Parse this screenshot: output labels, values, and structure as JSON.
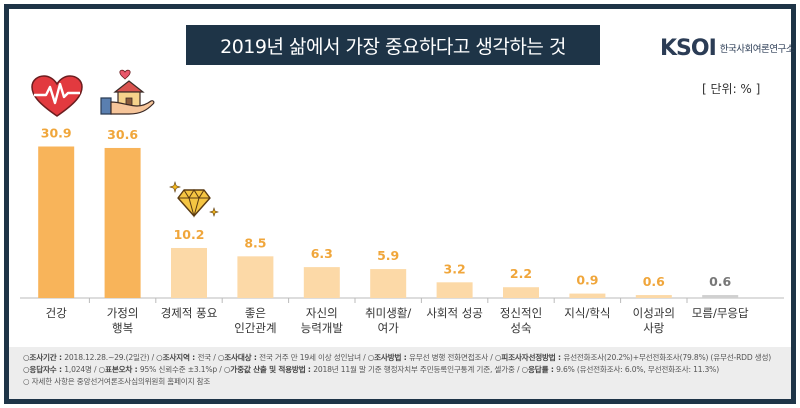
{
  "header": {
    "title": "2019년 삶에서 가장 중요하다고 생각하는 것",
    "logo_mark": "KSOI",
    "logo_text": "한국사회여론연구소",
    "unit": "[ 단위: % ]"
  },
  "chart_data": {
    "type": "bar",
    "title": "2019년 삶에서 가장 중요하다고 생각하는 것",
    "categories": [
      [
        "건강"
      ],
      [
        "가정의",
        "행복"
      ],
      [
        "경제적 풍요"
      ],
      [
        "좋은",
        "인간관계"
      ],
      [
        "자신의",
        "능력개발"
      ],
      [
        "취미생활/",
        "여가"
      ],
      [
        "사회적 성공"
      ],
      [
        "정신적인",
        "성숙"
      ],
      [
        "지식/학식"
      ],
      [
        "이성과의",
        "사랑"
      ],
      [
        "모름/무응답"
      ]
    ],
    "values": [
      30.9,
      30.6,
      10.2,
      8.5,
      6.3,
      5.9,
      3.2,
      2.2,
      0.9,
      0.6,
      0.6
    ],
    "value_labels": [
      "30.9",
      "30.6",
      "10.2",
      "8.5",
      "6.3",
      "5.9",
      "3.2",
      "2.2",
      "0.9",
      "0.6",
      "0.6"
    ],
    "ylim": [
      0,
      31
    ],
    "grid": false,
    "icons": [
      "heart-pulse-icon",
      "house-in-hand-icon",
      "diamond-icon"
    ],
    "colors": {
      "top_bar": "#f8b45a",
      "other_bar": "#fcd9a7",
      "last_bar": "#d0d0d0",
      "label_color": "#f0a63b",
      "last_label_color": "#777777"
    }
  },
  "footer": {
    "lines": [
      [
        {
          "k": "조사기간",
          "v": "2018.12.28.~29.(2일간)"
        },
        {
          "k": "조사지역",
          "v": "전국"
        },
        {
          "k": "조사대상",
          "v": "전국 거주 만 19세 이상 성인남녀"
        },
        {
          "k": "조사방법",
          "v": "유무선 병행 전화면접조사"
        },
        {
          "k": "피조사자선정방법",
          "v": "유선전화조사(20.2%)+무선전화조사(79.8%) (유무선-RDD 생성)"
        }
      ],
      [
        {
          "k": "응답자수",
          "v": "1,024명"
        },
        {
          "k": "표본오차",
          "v": "95% 신뢰수준 ±3.1%p"
        },
        {
          "k": "가중값 산출 및 적용방법",
          "v": "2018년 11월 말 기준 행정자치부 주민등록인구통계 기준, 셀가중"
        },
        {
          "k": "응답률",
          "v": "9.6% (유선전화조사: 6.0%, 무선전화조사: 11.3%)"
        }
      ]
    ],
    "note": "자세한 사항은 중앙선거여론조사심의위원회 홈페이지 참조"
  }
}
